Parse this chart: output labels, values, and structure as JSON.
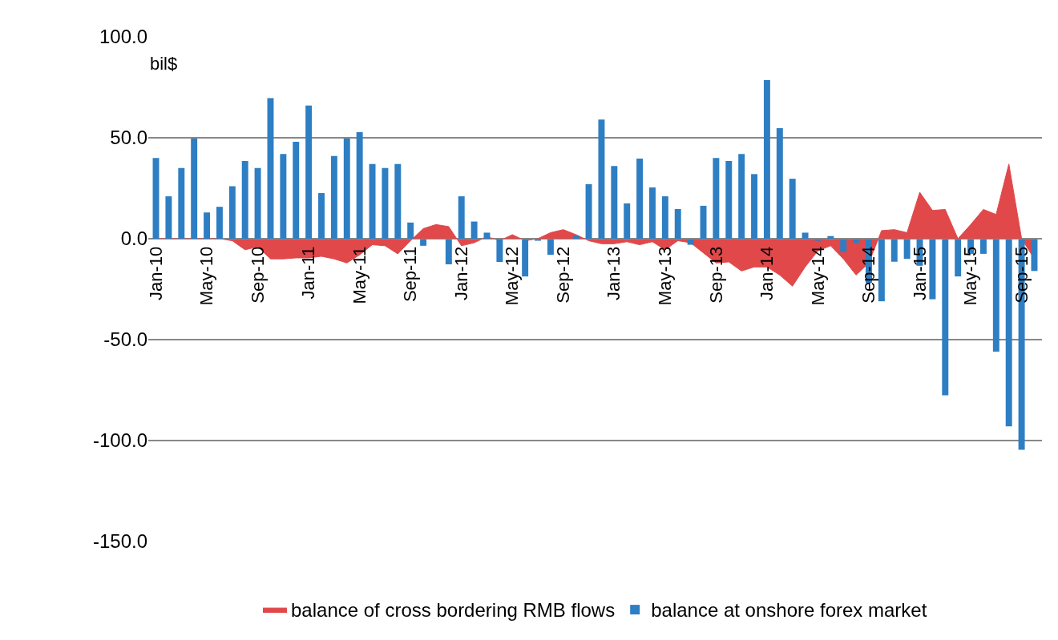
{
  "chart_data": {
    "type": "bar",
    "ylabel": "bil$",
    "categories": [
      "Jan-10",
      null,
      null,
      null,
      "May-10",
      null,
      null,
      null,
      "Sep-10",
      null,
      null,
      null,
      "Jan-11",
      null,
      null,
      null,
      "May-11",
      null,
      null,
      null,
      "Sep-11",
      null,
      null,
      null,
      "Jan-12",
      null,
      null,
      null,
      "May-12",
      null,
      null,
      null,
      "Sep-12",
      null,
      null,
      null,
      "Jan-13",
      null,
      null,
      null,
      "May-13",
      null,
      null,
      null,
      "Sep-13",
      null,
      null,
      null,
      "Jan-14",
      null,
      null,
      null,
      "May-14",
      null,
      null,
      null,
      "Sep-14",
      null,
      null,
      null,
      "Jan-15",
      null,
      null,
      null,
      "May-15",
      null,
      null,
      null,
      "Sep-15",
      null
    ],
    "series": [
      {
        "name": "balance of cross bordering RMB flows",
        "type": "area",
        "color": "#e0484a",
        "values": [
          0,
          0,
          0,
          0,
          0,
          0,
          -1,
          -5.5,
          -4,
          -10,
          -10,
          -9.5,
          -9.5,
          -8.7,
          -10,
          -12,
          -8,
          -3,
          -3.5,
          -7.5,
          -1,
          5,
          7,
          6,
          -3.5,
          -2,
          1,
          -1,
          2,
          -1,
          0,
          3,
          4.5,
          2,
          -1,
          -2.5,
          -2.5,
          -1.5,
          -3,
          -1.5,
          -5.5,
          -1,
          -2,
          -7,
          -12,
          -11.5,
          -16,
          -14,
          -14,
          -18,
          -23.5,
          -14,
          -6,
          -3.5,
          -10,
          -18,
          -12,
          4,
          4.5,
          3,
          23,
          14,
          14.5,
          0,
          7,
          14.5,
          12,
          37,
          0,
          -10
        ]
      },
      {
        "name": "balance at onshore forex market",
        "color": "#2e7ec3",
        "values": [
          40,
          21,
          35,
          49.6,
          13,
          15.8,
          26,
          38.5,
          35,
          69.6,
          42,
          48,
          66,
          22.6,
          41,
          49.6,
          52.8,
          37,
          35,
          37,
          8,
          -3.5,
          0,
          -12.7,
          21,
          8.5,
          3,
          -11.5,
          0,
          -18.7,
          -1,
          -8,
          0,
          1.6,
          27,
          59,
          36,
          17.5,
          39.7,
          25.4,
          21,
          14.7,
          -3,
          16.3,
          40,
          38.5,
          42,
          32,
          78.6,
          54.8,
          29.7,
          3,
          -1,
          1.3,
          -6.7,
          -2,
          -22,
          -31,
          -11.4,
          -10,
          -13.4,
          -30,
          -77.6,
          -18.7,
          -7.5,
          -7.5,
          -56,
          -93,
          -104.6,
          -16
        ]
      }
    ],
    "ylim": [
      -150,
      100
    ],
    "yticks": [
      {
        "value": 100,
        "label": "100.0"
      },
      {
        "value": 50,
        "label": "50.0"
      },
      {
        "value": 0,
        "label": "0.0"
      },
      {
        "value": -50,
        "label": "-50.0"
      },
      {
        "value": -100,
        "label": "-100.0"
      },
      {
        "value": -150,
        "label": "-150.0"
      }
    ],
    "grid": "y",
    "legend": "bottom"
  }
}
